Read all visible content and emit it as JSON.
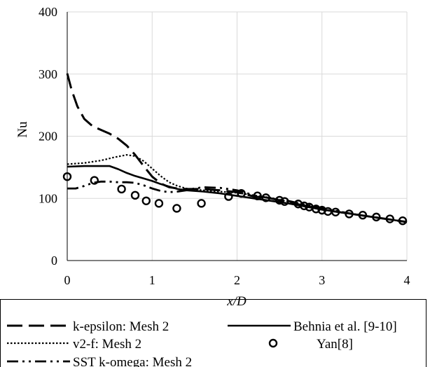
{
  "chart_data": {
    "type": "line",
    "title": "",
    "xlabel": "x/D",
    "ylabel": "Nu",
    "xlim": [
      0,
      4
    ],
    "ylim": [
      0,
      400
    ],
    "xticks": [
      "0",
      "1",
      "2",
      "3",
      "4"
    ],
    "yticks": [
      "0",
      "100",
      "200",
      "300",
      "400"
    ],
    "grid": true,
    "legend_position": "bottom",
    "series": [
      {
        "name": "k-epsilon: Mesh 2",
        "style": "long-dash",
        "x": [
          0,
          0.05,
          0.12,
          0.2,
          0.3,
          0.4,
          0.5,
          0.6,
          0.7,
          0.8,
          0.9,
          1.0,
          1.1,
          1.2,
          1.3,
          1.4,
          1.6,
          1.8,
          2.0,
          2.2,
          2.4,
          2.6,
          2.8,
          3.0,
          3.2,
          3.4,
          3.6,
          3.8,
          4.0
        ],
        "y": [
          301,
          275,
          248,
          228,
          216,
          210,
          204,
          196,
          185,
          170,
          152,
          135,
          124,
          118,
          116,
          115,
          115,
          113,
          110,
          103,
          100,
          94,
          88,
          82,
          78,
          74,
          70,
          66,
          62
        ]
      },
      {
        "name": "v2-f: Mesh 2",
        "style": "dotted",
        "x": [
          0,
          0.2,
          0.4,
          0.55,
          0.7,
          0.8,
          0.9,
          1.0,
          1.1,
          1.2,
          1.3,
          1.4,
          1.6,
          1.8,
          2.0,
          2.2,
          2.4,
          2.6,
          2.8,
          3.0,
          3.2,
          3.4,
          3.6,
          3.8,
          4.0
        ],
        "y": [
          155,
          157,
          161,
          166,
          170,
          168,
          160,
          148,
          136,
          126,
          120,
          116,
          113,
          111,
          109,
          105,
          101,
          95,
          89,
          83,
          78,
          74,
          70,
          66,
          62
        ]
      },
      {
        "name": "SST k-omega: Mesh 2",
        "style": "dash-dot-dot",
        "x": [
          0,
          0.1,
          0.2,
          0.3,
          0.4,
          0.5,
          0.6,
          0.7,
          0.8,
          0.9,
          1.0,
          1.1,
          1.2,
          1.3,
          1.4,
          1.5,
          1.6,
          1.8,
          2.0,
          2.2,
          2.4,
          2.6,
          2.8,
          3.0,
          3.2,
          3.4,
          3.6,
          3.8,
          4.0
        ],
        "y": [
          116,
          116,
          120,
          125,
          127,
          127,
          126,
          126,
          125,
          121,
          116,
          112,
          110,
          111,
          113,
          116,
          118,
          117,
          113,
          105,
          100,
          96,
          90,
          84,
          79,
          74,
          70,
          66,
          62
        ]
      },
      {
        "name": "Behnia et al. [9-10]",
        "style": "solid",
        "x": [
          0,
          0.2,
          0.35,
          0.5,
          0.6,
          0.7,
          0.8,
          0.9,
          1.0,
          1.1,
          1.2,
          1.3,
          1.4,
          1.5,
          1.6,
          1.8,
          2.0,
          2.2,
          2.4,
          2.6,
          2.8,
          3.0,
          3.2,
          3.4,
          3.6,
          3.8,
          4.0
        ],
        "y": [
          151,
          152,
          152,
          152,
          147,
          141,
          136,
          132,
          128,
          123,
          119,
          115,
          113,
          112,
          111,
          108,
          104,
          100,
          96,
          92,
          87,
          82,
          78,
          74,
          70,
          66,
          62
        ]
      },
      {
        "name": "Yan[8]",
        "style": "markers",
        "x": [
          0.0,
          0.32,
          0.64,
          0.8,
          0.93,
          1.08,
          1.29,
          1.58,
          1.9,
          2.05,
          2.24,
          2.34,
          2.5,
          2.56,
          2.72,
          2.79,
          2.85,
          2.93,
          3.0,
          3.07,
          3.16,
          3.32,
          3.48,
          3.64,
          3.8,
          3.95
        ],
        "y": [
          135,
          129,
          115,
          105,
          96,
          92,
          84,
          92,
          103,
          108,
          104,
          101,
          97,
          95,
          91,
          88,
          86,
          83,
          81,
          79,
          78,
          75,
          73,
          70,
          67,
          64
        ]
      }
    ]
  }
}
